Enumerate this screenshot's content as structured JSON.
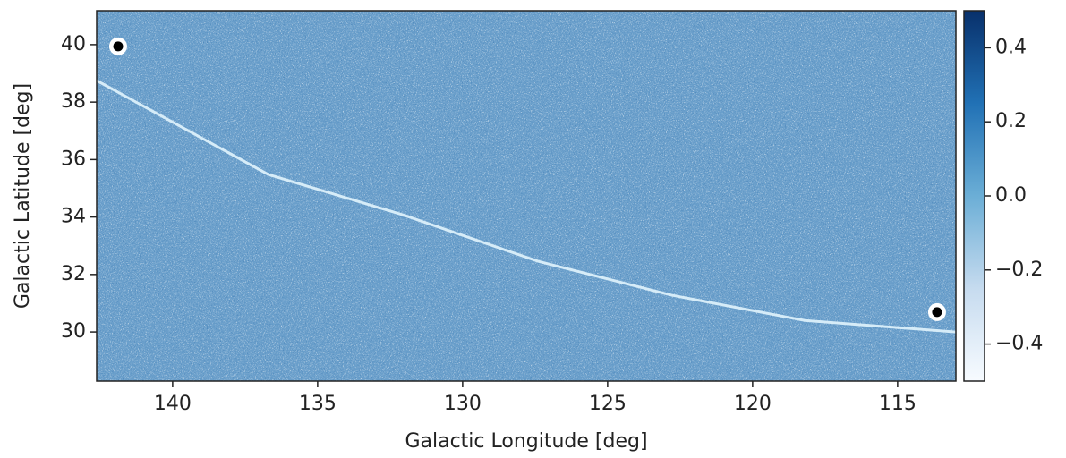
{
  "chart_data": {
    "type": "map",
    "xlabel": "Galactic Longitude [deg]",
    "ylabel": "Galactic Latitude [deg]",
    "xlim": [
      142.62,
      112.99
    ],
    "ylim": [
      28.29,
      41.18
    ],
    "xticks": [
      140,
      135,
      130,
      125,
      120,
      115
    ],
    "yticks": [
      30,
      32,
      34,
      36,
      38,
      40
    ],
    "image_color": "#6a9fcb",
    "curve": {
      "color": "#d6ecf8",
      "x": [
        142.62,
        136.7,
        132.07,
        127.4,
        122.8,
        118.2,
        112.99
      ],
      "y": [
        38.75,
        35.48,
        34.08,
        32.46,
        31.28,
        30.4,
        30.0
      ]
    },
    "points": {
      "x": [
        141.88,
        113.64
      ],
      "y": [
        39.94,
        30.69
      ],
      "color": "#000000"
    },
    "colorbar": {
      "lim": [
        -0.5,
        0.5
      ],
      "ticks": [
        {
          "value": -0.4,
          "label": "−0.4"
        },
        {
          "value": -0.2,
          "label": "−0.2"
        },
        {
          "value": 0,
          "label": "0.0"
        },
        0.2,
        0.4
      ],
      "colors": [
        "#f7fbff",
        "#c6dbef",
        "#6baed6",
        "#2171b5",
        "#08306b"
      ]
    }
  }
}
